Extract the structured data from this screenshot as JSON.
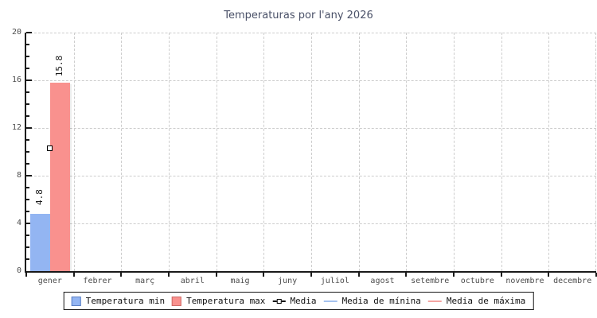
{
  "title": "Temperaturas por l'any 2026",
  "chart_data": {
    "type": "bar",
    "title": "Temperaturas por l'any 2026",
    "categories": [
      "gener",
      "febrer",
      "març",
      "abril",
      "maig",
      "juny",
      "juliol",
      "agost",
      "setembre",
      "octubre",
      "novembre",
      "decembre"
    ],
    "series": [
      {
        "name": "Temperatura min",
        "type": "bar",
        "color": "#93b5f2",
        "border_color": "#5b7fc4",
        "values": [
          4.8,
          null,
          null,
          null,
          null,
          null,
          null,
          null,
          null,
          null,
          null,
          null
        ]
      },
      {
        "name": "Temperatura max",
        "type": "bar",
        "color": "#f9918e",
        "border_color": "#cf6a67",
        "values": [
          15.8,
          null,
          null,
          null,
          null,
          null,
          null,
          null,
          null,
          null,
          null,
          null
        ]
      },
      {
        "name": "Media",
        "type": "point",
        "marker": "square",
        "marker_fill": "#ffffff",
        "marker_border": "#000000",
        "values": [
          10.3,
          null,
          null,
          null,
          null,
          null,
          null,
          null,
          null,
          null,
          null,
          null
        ]
      },
      {
        "name": "Media de mínina",
        "type": "line",
        "color": "#a5c2ef",
        "values": []
      },
      {
        "name": "Media de máxima",
        "type": "line",
        "color": "#f4a5a2",
        "values": []
      }
    ],
    "xlabel": "",
    "ylabel": "",
    "ylim": [
      0,
      20
    ],
    "yticks": [
      0,
      4,
      8,
      12,
      16,
      20
    ],
    "ytick_minor_step": 1,
    "grid": true,
    "grid_style": "dashed",
    "grid_color": "#cdcdcd",
    "axis_color": "#1a1a1a",
    "tick_label_color": "#4c4c4c",
    "title_color": "#4a5168",
    "legend_position": "bottom",
    "bar_value_labels": [
      "4.8",
      "15.8"
    ]
  }
}
